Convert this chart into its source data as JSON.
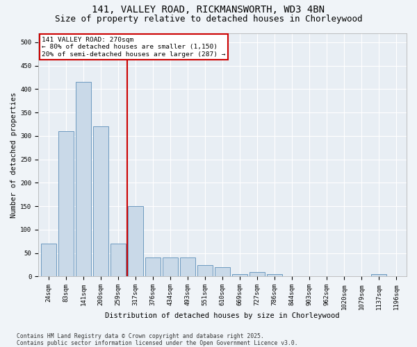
{
  "title_line1": "141, VALLEY ROAD, RICKMANSWORTH, WD3 4BN",
  "title_line2": "Size of property relative to detached houses in Chorleywood",
  "xlabel": "Distribution of detached houses by size in Chorleywood",
  "ylabel": "Number of detached properties",
  "categories": [
    "24sqm",
    "83sqm",
    "141sqm",
    "200sqm",
    "259sqm",
    "317sqm",
    "376sqm",
    "434sqm",
    "493sqm",
    "551sqm",
    "610sqm",
    "669sqm",
    "727sqm",
    "786sqm",
    "844sqm",
    "903sqm",
    "962sqm",
    "1020sqm",
    "1079sqm",
    "1137sqm",
    "1196sqm"
  ],
  "values": [
    70,
    310,
    415,
    320,
    70,
    150,
    40,
    40,
    40,
    25,
    20,
    5,
    10,
    5,
    0,
    0,
    0,
    0,
    0,
    5,
    0
  ],
  "bar_color": "#c9d9e8",
  "bar_edge_color": "#5b8db8",
  "vline_x_index": 4.5,
  "vline_color": "#cc0000",
  "annotation_text": "141 VALLEY ROAD: 270sqm\n← 80% of detached houses are smaller (1,150)\n20% of semi-detached houses are larger (287) →",
  "annotation_box_color": "#cc0000",
  "ylim": [
    0,
    520
  ],
  "yticks": [
    0,
    50,
    100,
    150,
    200,
    250,
    300,
    350,
    400,
    450,
    500
  ],
  "background_color": "#e8eef4",
  "grid_color": "#ffffff",
  "footer_text": "Contains HM Land Registry data © Crown copyright and database right 2025.\nContains public sector information licensed under the Open Government Licence v3.0.",
  "title_fontsize": 10,
  "subtitle_fontsize": 9,
  "axis_fontsize": 7.5,
  "tick_fontsize": 6.5,
  "fig_facecolor": "#f0f4f8"
}
